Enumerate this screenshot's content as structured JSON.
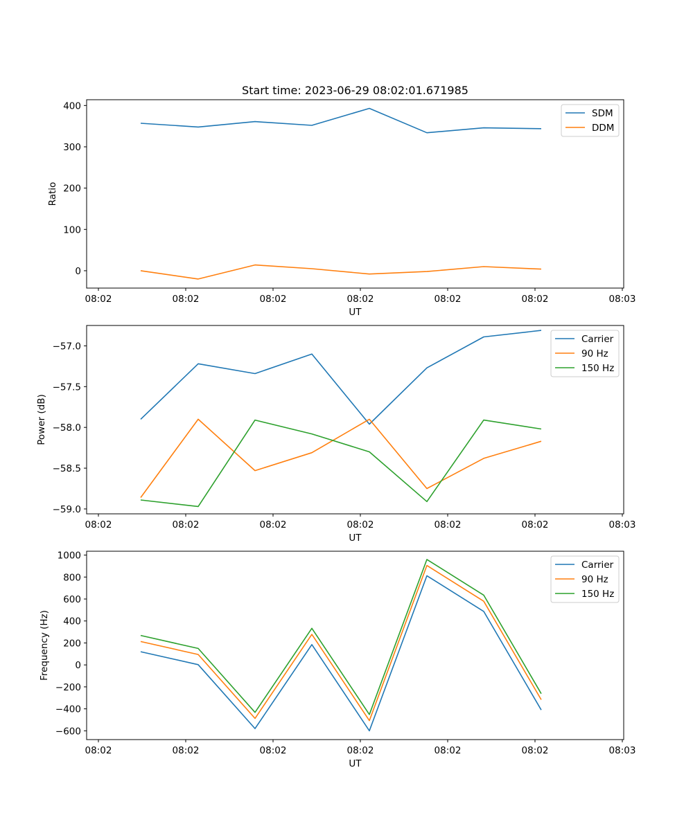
{
  "figure": {
    "title": "Start time: 2023-06-29 08:02:01.671985"
  },
  "chart_data": [
    {
      "type": "line",
      "title": "Start time: 2023-06-29 08:02:01.671985",
      "xlabel": "UT",
      "ylabel": "Ratio",
      "x_tick_labels": [
        "08:02",
        "08:02",
        "08:02",
        "08:02",
        "08:02",
        "08:02",
        "08:02",
        "08:03"
      ],
      "y_ticks": [
        0,
        100,
        200,
        300,
        400
      ],
      "ylim": [
        -42,
        414
      ],
      "grid": false,
      "legend_position": "top-right",
      "series": [
        {
          "name": "SDM",
          "color": "#1f77b4",
          "values": [
            357,
            348,
            361,
            352,
            393,
            334,
            346,
            344
          ]
        },
        {
          "name": "DDM",
          "color": "#ff7f0e",
          "values": [
            0,
            -20,
            14,
            5,
            -8,
            -2,
            10,
            4
          ]
        }
      ]
    },
    {
      "type": "line",
      "xlabel": "UT",
      "ylabel": "Power (dB)",
      "x_tick_labels": [
        "08:02",
        "08:02",
        "08:02",
        "08:02",
        "08:02",
        "08:02",
        "08:02",
        "08:03"
      ],
      "y_ticks": [
        -59.0,
        -58.5,
        -58.0,
        -57.5,
        -57.0
      ],
      "y_tick_labels": [
        "−59.0",
        "−58.5",
        "−58.0",
        "−57.5",
        "−57.0"
      ],
      "ylim": [
        -59.06,
        -56.75
      ],
      "grid": false,
      "legend_position": "top-right",
      "series": [
        {
          "name": "Carrier",
          "color": "#1f77b4",
          "values": [
            -57.9,
            -57.22,
            -57.34,
            -57.1,
            -57.96,
            -57.27,
            -56.89,
            -56.81
          ]
        },
        {
          "name": "90 Hz",
          "color": "#ff7f0e",
          "values": [
            -58.86,
            -57.9,
            -58.53,
            -58.31,
            -57.9,
            -58.75,
            -58.38,
            -58.17
          ]
        },
        {
          "name": "150 Hz",
          "color": "#2ca02c",
          "values": [
            -58.89,
            -58.97,
            -57.91,
            -58.08,
            -58.3,
            -58.91,
            -57.91,
            -58.02
          ]
        }
      ]
    },
    {
      "type": "line",
      "xlabel": "UT",
      "ylabel": "Frequency (Hz)",
      "x_tick_labels": [
        "08:02",
        "08:02",
        "08:02",
        "08:02",
        "08:02",
        "08:02",
        "08:02",
        "08:03"
      ],
      "y_ticks": [
        -600,
        -400,
        -200,
        0,
        200,
        400,
        600,
        800,
        1000
      ],
      "y_tick_labels": [
        "−600",
        "−400",
        "−200",
        "0",
        "200",
        "400",
        "600",
        "800",
        "1000"
      ],
      "ylim": [
        -680,
        1035
      ],
      "grid": false,
      "legend_position": "top-right",
      "series": [
        {
          "name": "Carrier",
          "color": "#1f77b4",
          "values": [
            120,
            2,
            -580,
            185,
            -600,
            812,
            487,
            -410
          ]
        },
        {
          "name": "90 Hz",
          "color": "#ff7f0e",
          "values": [
            213,
            95,
            -487,
            278,
            -507,
            905,
            580,
            -317
          ]
        },
        {
          "name": "150 Hz",
          "color": "#2ca02c",
          "values": [
            268,
            150,
            -432,
            333,
            -452,
            960,
            635,
            -262
          ]
        }
      ]
    }
  ]
}
